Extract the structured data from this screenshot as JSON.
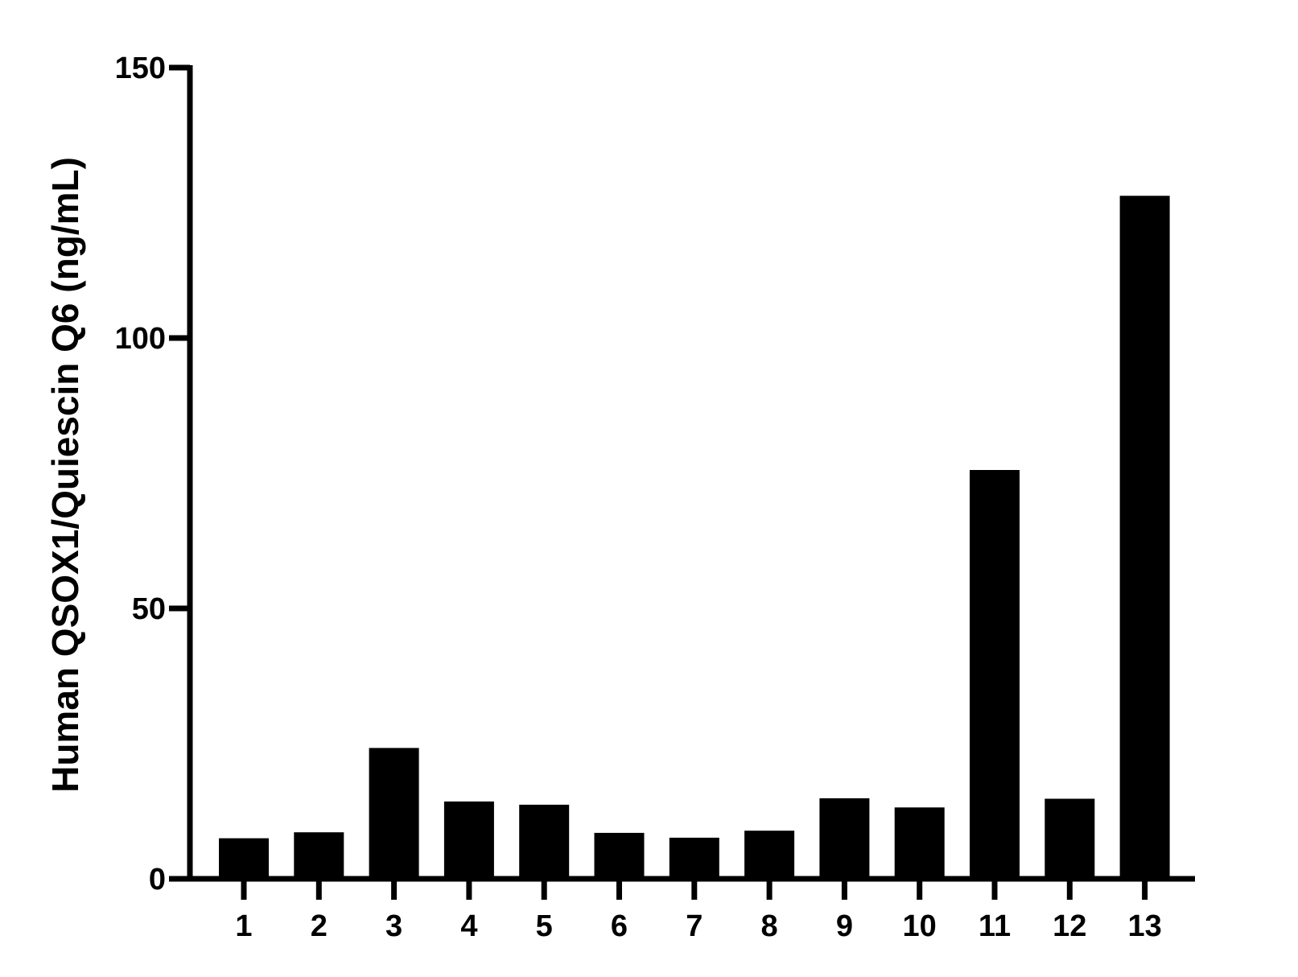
{
  "chart_data": {
    "type": "bar",
    "title": "",
    "xlabel": "",
    "ylabel": "Human QSOX1/Quiescin Q6 (ng/mL)",
    "categories": [
      "1",
      "2",
      "3",
      "4",
      "5",
      "6",
      "7",
      "8",
      "9",
      "10",
      "11",
      "12",
      "13"
    ],
    "values": [
      7.5,
      8.6,
      24.2,
      14.3,
      13.7,
      8.5,
      7.6,
      8.9,
      14.9,
      13.2,
      75.6,
      14.8,
      126.3
    ],
    "ylim": [
      0,
      150
    ],
    "yticks": [
      0,
      50,
      100,
      150
    ],
    "ytick_labels": [
      "0",
      "50",
      "100",
      "150"
    ],
    "grid": false,
    "legend": "none",
    "bar_color": "#000000",
    "axis_color": "#000000"
  }
}
